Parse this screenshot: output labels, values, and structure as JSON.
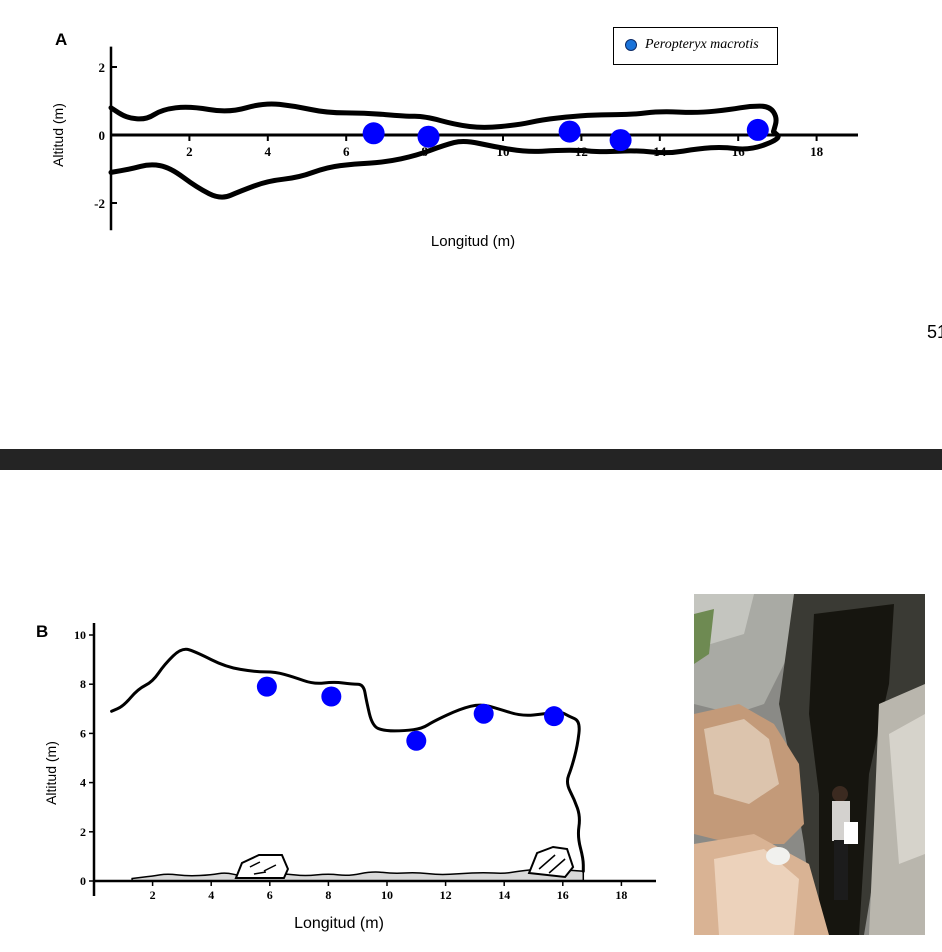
{
  "page_number": "51",
  "legend": {
    "label": "Peropteryx macrotis",
    "marker_color": "#1a73d9"
  },
  "chart_data": [
    {
      "type": "line",
      "panel": "A",
      "xlabel": "Longitud (m)",
      "ylabel": "Altitud (m)",
      "xlim": [
        0,
        19
      ],
      "ylim": [
        -2.8,
        2.6
      ],
      "xticks": [
        2,
        4,
        6,
        8,
        10,
        12,
        14,
        16,
        18
      ],
      "yticks": [
        -2,
        0,
        2
      ],
      "grid": false,
      "legend_position": "top-right",
      "series": [
        {
          "role": "upper-wall",
          "points": [
            [
              0,
              0.8
            ],
            [
              0.4,
              0.5
            ],
            [
              0.9,
              0.45
            ],
            [
              1.3,
              0.75
            ],
            [
              2,
              0.85
            ],
            [
              3,
              0.65
            ],
            [
              3.9,
              0.95
            ],
            [
              4.7,
              0.85
            ],
            [
              5.5,
              0.65
            ],
            [
              6.5,
              0.65
            ],
            [
              7.5,
              0.55
            ],
            [
              8,
              0.55
            ],
            [
              8.8,
              0.3
            ],
            [
              9.5,
              0.2
            ],
            [
              10.4,
              0.3
            ],
            [
              11,
              0.45
            ],
            [
              11.8,
              0.55
            ],
            [
              12.5,
              0.6
            ],
            [
              13.3,
              0.6
            ],
            [
              14,
              0.7
            ],
            [
              15,
              0.65
            ],
            [
              15.8,
              0.75
            ],
            [
              16.3,
              0.85
            ],
            [
              16.8,
              0.85
            ],
            [
              17,
              0.5
            ],
            [
              16.9,
              0.1
            ]
          ]
        },
        {
          "role": "lower-wall",
          "points": [
            [
              0,
              -1.1
            ],
            [
              0.5,
              -1.0
            ],
            [
              1,
              -0.85
            ],
            [
              1.5,
              -0.95
            ],
            [
              2.2,
              -1.55
            ],
            [
              2.8,
              -1.9
            ],
            [
              3.3,
              -1.65
            ],
            [
              4,
              -1.35
            ],
            [
              4.8,
              -1.25
            ],
            [
              5.5,
              -0.95
            ],
            [
              6.2,
              -0.85
            ],
            [
              7,
              -0.8
            ],
            [
              7.8,
              -0.6
            ],
            [
              8.5,
              -0.3
            ],
            [
              9,
              -0.15
            ],
            [
              9.8,
              -0.35
            ],
            [
              10.6,
              -0.5
            ],
            [
              11.4,
              -0.45
            ],
            [
              12,
              -0.45
            ],
            [
              12.5,
              -0.5
            ],
            [
              13.4,
              -0.45
            ],
            [
              14.2,
              -0.55
            ],
            [
              15,
              -0.4
            ],
            [
              15.6,
              -0.35
            ],
            [
              16.3,
              -0.45
            ],
            [
              17.1,
              -0.1
            ],
            [
              16.9,
              0.1
            ]
          ]
        }
      ],
      "points": [
        {
          "x": 6.7,
          "y": 0.05,
          "color": "#0000ff"
        },
        {
          "x": 8.1,
          "y": -0.05,
          "color": "#0000ff"
        },
        {
          "x": 11.7,
          "y": 0.1,
          "color": "#0000ff"
        },
        {
          "x": 13.0,
          "y": -0.15,
          "color": "#0000ff"
        },
        {
          "x": 16.5,
          "y": 0.15,
          "color": "#0000ff"
        }
      ]
    },
    {
      "type": "line",
      "panel": "B",
      "xlabel": "Longitud (m)",
      "ylabel": "Altitud (m)",
      "xlim": [
        0,
        19
      ],
      "ylim": [
        0,
        10.5
      ],
      "xticks": [
        2,
        4,
        6,
        8,
        10,
        12,
        14,
        16,
        18
      ],
      "yticks": [
        0,
        2,
        4,
        6,
        8,
        10
      ],
      "grid": false,
      "series": [
        {
          "role": "ceiling",
          "points": [
            [
              0.6,
              6.9
            ],
            [
              1,
              7.1
            ],
            [
              1.5,
              7.8
            ],
            [
              2,
              8.1
            ],
            [
              2.4,
              8.8
            ],
            [
              3,
              9.5
            ],
            [
              3.5,
              9.3
            ],
            [
              4.5,
              8.7
            ],
            [
              5.5,
              8.5
            ],
            [
              6.2,
              8.5
            ],
            [
              6.8,
              8.3
            ],
            [
              7.5,
              8.0
            ],
            [
              8.2,
              8.1
            ],
            [
              8.8,
              8.0
            ],
            [
              9.2,
              8.0
            ],
            [
              9.3,
              7.3
            ],
            [
              9.5,
              6.3
            ],
            [
              9.9,
              6.1
            ],
            [
              10.6,
              6.1
            ],
            [
              11.2,
              6.2
            ],
            [
              11.6,
              6.5
            ],
            [
              12.5,
              7.0
            ],
            [
              13.2,
              7.2
            ],
            [
              13.8,
              7.0
            ],
            [
              14.6,
              6.7
            ],
            [
              15.4,
              6.8
            ],
            [
              15.9,
              6.9
            ],
            [
              16.2,
              6.7
            ],
            [
              16.6,
              6.5
            ],
            [
              16.5,
              5.5
            ],
            [
              16.3,
              4.6
            ],
            [
              16.1,
              4.0
            ],
            [
              16.4,
              3.3
            ],
            [
              16.6,
              2.6
            ],
            [
              16.5,
              1.8
            ],
            [
              16.7,
              0.9
            ],
            [
              16.7,
              0.4
            ]
          ]
        },
        {
          "role": "floor",
          "points": [
            [
              1.3,
              0.1
            ],
            [
              2,
              0.2
            ],
            [
              2.5,
              0.3
            ],
            [
              3.2,
              0.2
            ],
            [
              4,
              0.25
            ],
            [
              4.5,
              0.35
            ],
            [
              5,
              0.2
            ],
            [
              5.8,
              0.25
            ],
            [
              6.5,
              0.3
            ],
            [
              7.2,
              0.2
            ],
            [
              8,
              0.3
            ],
            [
              8.7,
              0.2
            ],
            [
              9.5,
              0.4
            ],
            [
              10.2,
              0.3
            ],
            [
              11,
              0.35
            ],
            [
              11.8,
              0.25
            ],
            [
              12.5,
              0.3
            ],
            [
              13.3,
              0.35
            ],
            [
              14,
              0.3
            ],
            [
              14.5,
              0.4
            ],
            [
              15.3,
              0.5
            ],
            [
              16,
              0.45
            ],
            [
              16.7,
              0.4
            ]
          ]
        }
      ],
      "points": [
        {
          "x": 5.9,
          "y": 7.9,
          "color": "#0000ff"
        },
        {
          "x": 8.1,
          "y": 7.5,
          "color": "#0000ff"
        },
        {
          "x": 11.0,
          "y": 5.7,
          "color": "#0000ff"
        },
        {
          "x": 13.3,
          "y": 6.8,
          "color": "#0000ff"
        },
        {
          "x": 15.7,
          "y": 6.7,
          "color": "#0000ff"
        }
      ]
    }
  ]
}
